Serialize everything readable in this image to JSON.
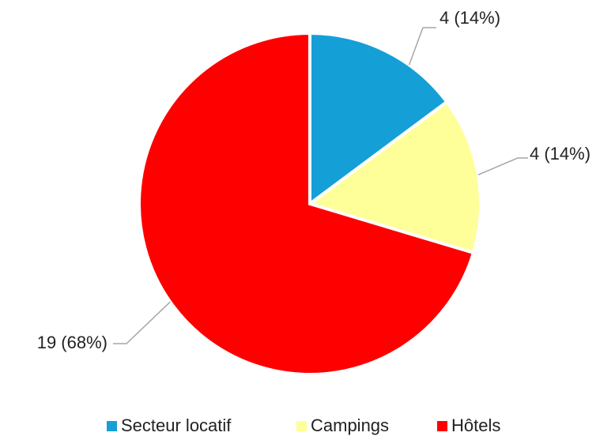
{
  "chart_data": {
    "type": "pie",
    "categories": [
      "Secteur locatif",
      "Campings",
      "Hôtels"
    ],
    "values": [
      4,
      4,
      19
    ],
    "value_labels": [
      "4 (14%)",
      "4 (14%)",
      "19 (68%)"
    ],
    "colors": [
      "#159fd7",
      "#ffff99",
      "#ff0000"
    ],
    "legend": "bottom"
  }
}
